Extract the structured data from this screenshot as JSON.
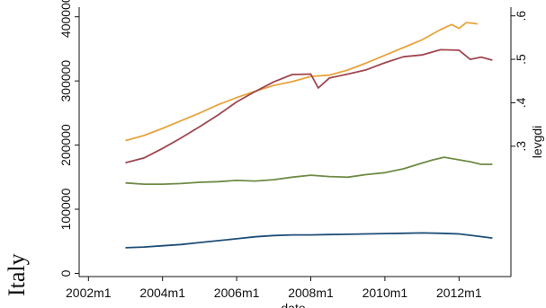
{
  "side_label": "Italy",
  "chart_data": {
    "type": "line",
    "xlabel": "date",
    "ylabel_right": "levgdi",
    "x_ticks": [
      "2002m1",
      "2004m1",
      "2006m1",
      "2008m1",
      "2010m1",
      "2012m1"
    ],
    "x_tick_values": [
      2002,
      2004,
      2006,
      2008,
      2010,
      2012
    ],
    "xlim": [
      2001.75,
      2013.4
    ],
    "y_left": {
      "ticks": [
        "0",
        "100000",
        "200000",
        "300000",
        "400000"
      ],
      "tick_values": [
        0,
        100000,
        200000,
        300000,
        400000
      ],
      "ylim": [
        -5000,
        415000
      ]
    },
    "y_right": {
      "ticks": [
        ".3",
        ".4",
        ".5",
        ".6"
      ],
      "tick_values": [
        0.3,
        0.4,
        0.5,
        0.6
      ],
      "ylim": [
        0.0,
        0.62
      ]
    },
    "grid": false,
    "series": [
      {
        "axis": "left",
        "color": "#1f4e79",
        "x": [
          2003.0,
          2003.5,
          2004.0,
          2004.5,
          2005.0,
          2005.5,
          2006.0,
          2006.5,
          2007.0,
          2007.5,
          2008.0,
          2008.5,
          2009.0,
          2009.5,
          2010.0,
          2010.5,
          2011.0,
          2011.5,
          2012.0,
          2012.5,
          2012.9
        ],
        "y": [
          40000,
          41000,
          43000,
          45000,
          48000,
          51000,
          54000,
          57000,
          59000,
          60000,
          60000,
          60500,
          61000,
          61500,
          62000,
          62500,
          63000,
          62500,
          61500,
          58000,
          55000
        ]
      },
      {
        "axis": "left",
        "color": "#6e8b45",
        "x": [
          2003.0,
          2003.5,
          2004.0,
          2004.5,
          2005.0,
          2005.5,
          2006.0,
          2006.5,
          2007.0,
          2007.5,
          2008.0,
          2008.5,
          2009.0,
          2009.5,
          2010.0,
          2010.5,
          2011.0,
          2011.3,
          2011.6,
          2012.0,
          2012.3,
          2012.6,
          2012.9
        ],
        "y": [
          141000,
          139000,
          139000,
          140000,
          142000,
          143000,
          145000,
          144000,
          146000,
          150000,
          153000,
          151000,
          150000,
          154000,
          157000,
          163000,
          172000,
          177000,
          181000,
          177000,
          174000,
          170000,
          170000
        ]
      },
      {
        "axis": "left",
        "color": "#e8a33c",
        "x": [
          2003.0,
          2003.5,
          2004.0,
          2004.5,
          2005.0,
          2005.5,
          2006.0,
          2006.5,
          2007.0,
          2007.5,
          2008.0,
          2008.5,
          2009.0,
          2009.5,
          2010.0,
          2010.5,
          2011.0,
          2011.5,
          2011.8,
          2012.0,
          2012.2,
          2012.5
        ],
        "y": [
          207000,
          215000,
          226000,
          238000,
          250000,
          263000,
          274000,
          284000,
          293000,
          299000,
          307000,
          309000,
          317000,
          328000,
          340000,
          352000,
          364000,
          380000,
          388000,
          382000,
          391000,
          389000
        ]
      },
      {
        "axis": "right",
        "color": "#a0464f",
        "x": [
          2003.0,
          2003.5,
          2004.0,
          2004.5,
          2005.0,
          2005.5,
          2006.0,
          2006.5,
          2007.0,
          2007.5,
          2008.0,
          2008.2,
          2008.5,
          2009.0,
          2009.5,
          2010.0,
          2010.5,
          2011.0,
          2011.5,
          2012.0,
          2012.3,
          2012.6,
          2012.9
        ],
        "y": [
          0.262,
          0.273,
          0.295,
          0.319,
          0.345,
          0.372,
          0.402,
          0.426,
          0.448,
          0.465,
          0.466,
          0.434,
          0.457,
          0.466,
          0.476,
          0.492,
          0.506,
          0.51,
          0.522,
          0.521,
          0.5,
          0.505,
          0.498
        ]
      }
    ]
  }
}
